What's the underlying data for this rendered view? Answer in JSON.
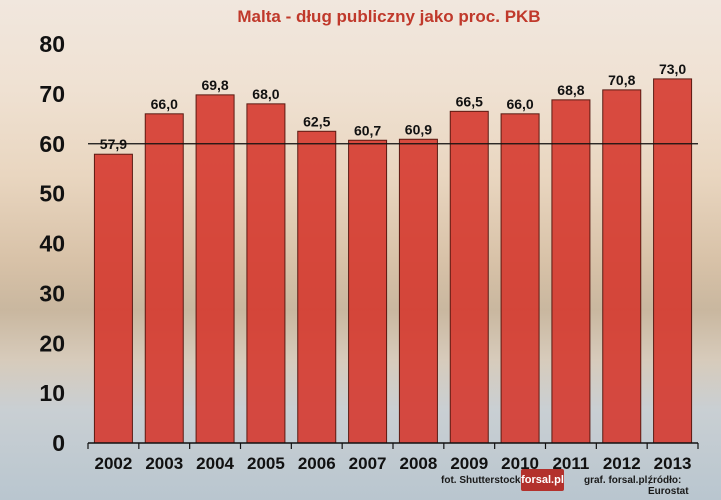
{
  "chart_data": {
    "type": "bar",
    "title": "Malta - dług publiczny jako proc. PKB",
    "categories": [
      "2002",
      "2003",
      "2004",
      "2005",
      "2006",
      "2007",
      "2008",
      "2009",
      "2010",
      "2011",
      "2012",
      "2013"
    ],
    "values": [
      57.9,
      66.0,
      69.8,
      68.0,
      62.5,
      60.7,
      60.9,
      66.5,
      66.0,
      68.8,
      70.8,
      73.0
    ],
    "value_labels": [
      "57,9",
      "66,0",
      "69,8",
      "68,0",
      "62,5",
      "60,7",
      "60,9",
      "66,5",
      "66,0",
      "68,8",
      "70,8",
      "73,0"
    ],
    "yticks": [
      "0",
      "10",
      "20",
      "30",
      "40",
      "50",
      "60",
      "70",
      "80"
    ],
    "ylim": [
      0,
      80
    ],
    "reference_line": 60,
    "grid": false,
    "xlabel": "",
    "ylabel": "",
    "colors": {
      "bar": "#d5352b",
      "title": "#c0392b",
      "text": "#111111"
    }
  },
  "credits": {
    "photo": "fot. Shutterstock",
    "logo": "forsal.pl",
    "graphic": "graf. forsal.pl;",
    "source": "źródło: Eurostat"
  }
}
